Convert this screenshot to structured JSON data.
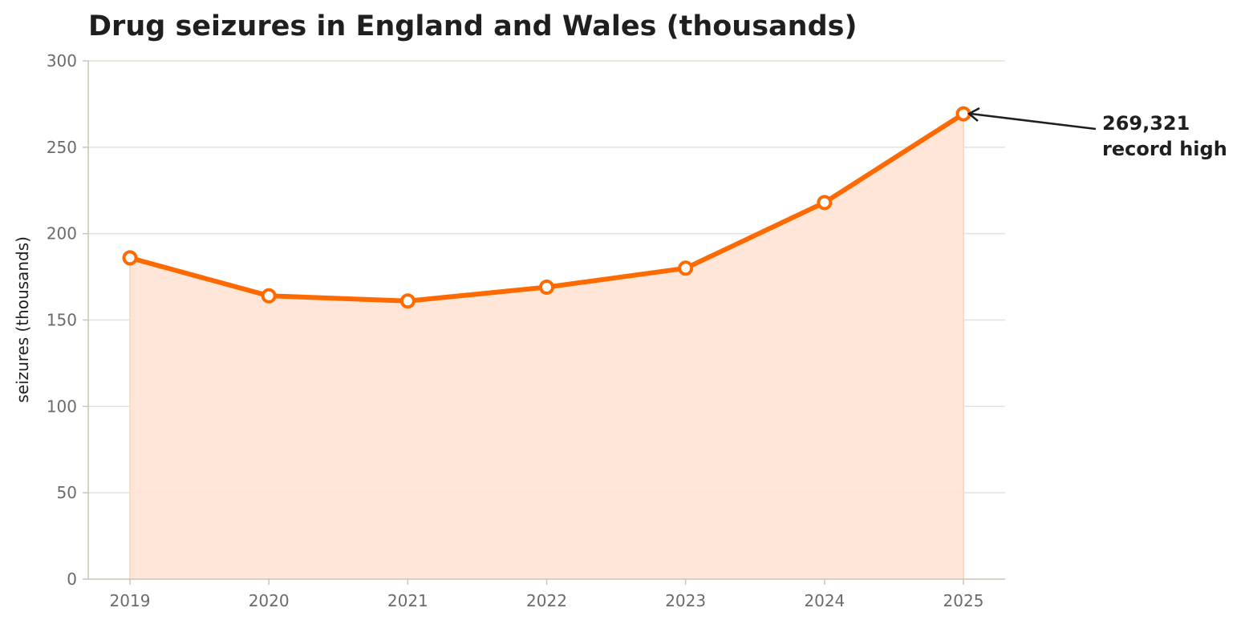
{
  "chart_data": {
    "type": "area",
    "title": "Drug seizures in England and Wales (thousands)",
    "xlabel": "",
    "ylabel": "seizures (thousands)",
    "categories": [
      "2019",
      "2020",
      "2021",
      "2022",
      "2023",
      "2024",
      "2025"
    ],
    "series": [
      {
        "values": [
          186,
          164,
          161,
          169,
          180,
          218,
          269.321
        ]
      }
    ],
    "ylim": [
      0,
      300
    ],
    "yticks": [
      0,
      50,
      100,
      150,
      200,
      250,
      300
    ],
    "grid": "horizontal",
    "line_color": "#ff6a00",
    "fill_color": "#ffe4d6",
    "annotation": {
      "category": "2025",
      "line1": "269,321",
      "line2": "record high"
    }
  }
}
